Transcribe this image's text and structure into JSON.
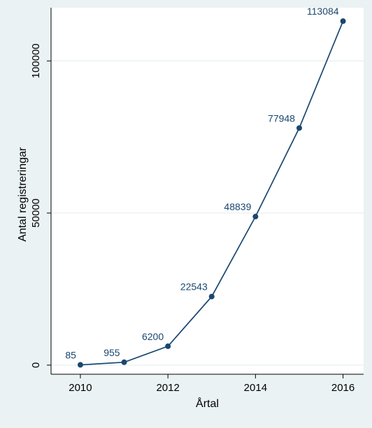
{
  "chart_data": {
    "type": "line",
    "title": "",
    "xlabel": "Årtal",
    "ylabel": "Antal registreringar",
    "x": [
      2010,
      2011,
      2012,
      2013,
      2014,
      2015,
      2016
    ],
    "series": [
      {
        "values": [
          85,
          955,
          6200,
          22543,
          48839,
          77948,
          113084
        ]
      }
    ],
    "data_labels": [
      "85",
      "955",
      "6200",
      "22543",
      "48839",
      "77948",
      "113084"
    ],
    "xlim": [
      2009.33,
      2016.47
    ],
    "ylim": [
      -3000,
      117500
    ],
    "xticks": [
      2010,
      2012,
      2014,
      2016
    ],
    "xtick_labels": [
      "2010",
      "2012",
      "2014",
      "2016"
    ],
    "yticks": [
      0,
      50000,
      100000
    ],
    "ytick_labels": [
      "0",
      "50000",
      "100000"
    ],
    "grid": "horizontal",
    "colors": {
      "background": "#eaf2f3",
      "plot_background": "#ffffff",
      "line": "#1a476f",
      "grid": "#eaf2f3",
      "label": "#1a476f",
      "axis": "#000000"
    }
  }
}
